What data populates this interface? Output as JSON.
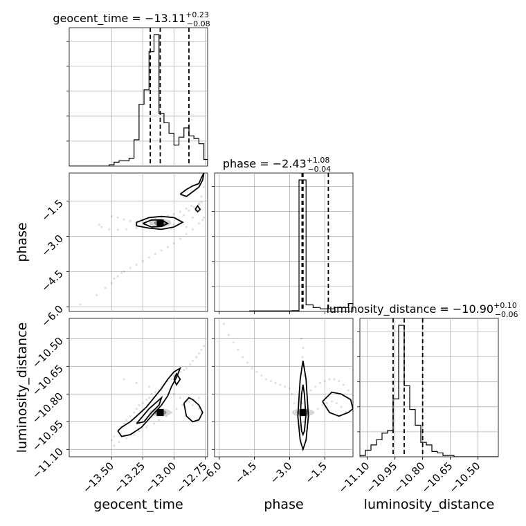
{
  "chart_data": {
    "type": "corner",
    "parameters": [
      "geocent_time",
      "phase",
      "luminosity_distance"
    ],
    "axis_labels": {
      "geocent_time": "geocent_time",
      "phase": "phase",
      "luminosity_distance": "luminosity_distance"
    },
    "ranges": {
      "geocent_time": [
        -13.84,
        -12.73
      ],
      "phase": [
        -6.2,
        -0.3
      ],
      "luminosity_distance": [
        -11.14,
        -10.39
      ]
    },
    "ticks": {
      "geocent_time": [
        -13.5,
        -13.25,
        -13.0,
        -12.75
      ],
      "phase": [
        -6.0,
        -4.5,
        -3.0,
        -1.5
      ],
      "luminosity_distance": [
        -11.1,
        -10.95,
        -10.8,
        -10.65,
        -10.5
      ]
    },
    "tick_labels": {
      "geocent_time": [
        "−13.50",
        "−13.25",
        "−13.00",
        "−12.75"
      ],
      "phase": [
        "−6.0",
        "−4.5",
        "−3.0",
        "−1.5"
      ],
      "luminosity_distance": [
        "−11.10",
        "−10.95",
        "−10.80",
        "−10.65",
        "−10.50"
      ]
    },
    "titles": {
      "geocent_time": {
        "base": "geocent_time = −13.11",
        "sup": "+0.23",
        "sub": "−0.08"
      },
      "phase": {
        "base": "phase = −2.43",
        "sup": "+1.08",
        "sub": "−0.04"
      },
      "luminosity_distance": {
        "base": "luminosity_distance = −10.90",
        "sup": "+0.10",
        "sub": "−0.06"
      }
    },
    "quantiles": {
      "geocent_time": [
        -13.19,
        -13.11,
        -12.88
      ],
      "phase": [
        -2.47,
        -2.43,
        -1.35
      ],
      "luminosity_distance": [
        -10.96,
        -10.9,
        -10.8
      ]
    },
    "histograms": {
      "geocent_time": {
        "edges": [
          -13.84,
          -13.8,
          -13.76,
          -13.72,
          -13.68,
          -13.64,
          -13.6,
          -13.56,
          -13.52,
          -13.48,
          -13.44,
          -13.4,
          -13.36,
          -13.32,
          -13.28,
          -13.24,
          -13.2,
          -13.16,
          -13.12,
          -13.08,
          -13.04,
          -13.0,
          -12.96,
          -12.92,
          -12.88,
          -12.84,
          -12.8,
          -12.76,
          -12.73
        ],
        "counts": [
          0,
          0,
          0,
          0,
          0,
          0,
          0,
          0,
          1,
          3,
          4,
          4,
          6,
          20,
          47,
          58,
          87,
          100,
          40,
          33,
          25,
          16,
          22,
          29,
          23,
          21,
          17,
          5
        ]
      },
      "phase": {
        "edges": [
          -6.2,
          -5.9,
          -5.6,
          -5.3,
          -5.0,
          -4.7,
          -4.4,
          -4.1,
          -3.8,
          -3.5,
          -3.2,
          -2.9,
          -2.6,
          -2.3,
          -2.0,
          -1.7,
          -1.4,
          -1.1,
          -0.8,
          -0.5,
          -0.3
        ],
        "counts": [
          0,
          0,
          0,
          0,
          0,
          0.4,
          0.4,
          0.4,
          0.4,
          0.4,
          0.4,
          0.6,
          100,
          5,
          3,
          2,
          2,
          3,
          3,
          6
        ]
      },
      "luminosity_distance": {
        "edges": [
          -11.14,
          -11.11,
          -11.08,
          -11.05,
          -11.02,
          -10.99,
          -10.96,
          -10.93,
          -10.9,
          -10.87,
          -10.84,
          -10.81,
          -10.78,
          -10.75,
          -10.72,
          -10.69,
          -10.66,
          -10.63,
          -10.6,
          -10.57,
          -10.54,
          -10.51,
          -10.48,
          -10.45,
          -10.42,
          -10.39
        ],
        "counts": [
          1,
          5,
          9,
          13,
          18,
          20,
          44,
          100,
          54,
          36,
          24,
          11,
          9,
          4,
          3,
          1,
          1,
          0,
          0,
          0,
          0,
          0,
          0,
          0,
          0
        ]
      }
    },
    "scatter": {
      "phase_vs_geocent_time": {
        "x": [
          -13.75,
          -13.62,
          -13.55,
          -13.5,
          -13.48,
          -13.45,
          -13.42,
          -13.4,
          -13.35,
          -13.3,
          -13.25,
          -13.2,
          -13.15,
          -13.1,
          -13.05,
          -13.0,
          -12.95,
          -12.9,
          -12.85,
          -12.8,
          -12.77,
          -12.76,
          -13.5,
          -13.45,
          -13.4,
          -13.35,
          -13.3,
          -13.28,
          -13.22,
          -13.18,
          -13.12,
          -13.08,
          -13.04,
          -12.98,
          -12.92,
          -12.88,
          -12.84,
          -12.8,
          -12.78,
          -13.6,
          -13.58,
          -13.52,
          -13.45,
          -13.38,
          -13.3,
          -13.2,
          -13.1,
          -13.0,
          -12.9,
          -12.85,
          -12.82,
          -12.8,
          -12.78,
          -12.76,
          -13.25,
          -13.2,
          -13.15,
          -13.1,
          -13.05,
          -13.0,
          -12.95,
          -12.9,
          -12.86
        ],
        "y": [
          -5.9,
          -5.5,
          -5.2,
          -5.0,
          -4.8,
          -4.7,
          -4.55,
          -4.5,
          -4.35,
          -4.2,
          -4.05,
          -3.9,
          -3.75,
          -3.6,
          -3.45,
          -3.3,
          -3.1,
          -2.9,
          -2.7,
          -2.45,
          -2.3,
          -2.2,
          -2.15,
          -2.2,
          -2.28,
          -2.34,
          -2.38,
          -2.4,
          -2.42,
          -2.44,
          -2.45,
          -2.4,
          -2.35,
          -2.25,
          -2.1,
          -1.9,
          -1.75,
          -1.65,
          -1.55,
          -2.5,
          -2.6,
          -2.7,
          -2.72,
          -2.7,
          -2.65,
          -2.6,
          -2.55,
          -2.5,
          -2.6,
          -2.2,
          -1.85,
          -1.6,
          -1.3,
          -0.9,
          -2.35,
          -2.3,
          -2.25,
          -2.18,
          -2.12,
          -2.05,
          -1.95,
          -1.82,
          -1.7
        ]
      },
      "luminosity_distance_vs_geocent_time": {
        "x": [
          -13.5,
          -13.48,
          -13.45,
          -13.42,
          -13.4,
          -13.38,
          -13.35,
          -13.32,
          -13.3,
          -13.28,
          -13.25,
          -13.22,
          -13.2,
          -13.18,
          -13.15,
          -13.12,
          -13.1,
          -13.08,
          -13.05,
          -13.02,
          -13.0,
          -12.97,
          -12.95,
          -12.92,
          -12.9,
          -12.87,
          -12.85,
          -12.82,
          -12.8,
          -12.78,
          -12.76,
          -13.4,
          -13.3,
          -13.2,
          -13.1,
          -13.0,
          -12.95,
          -12.9,
          -12.85,
          -12.8,
          -12.78,
          -13.48,
          -13.44,
          -13.38,
          -13.32,
          -13.28,
          -13.22,
          -13.16,
          -13.12,
          -13.06,
          -13.02,
          -12.98,
          -12.93,
          -12.88,
          -12.84,
          -12.8
        ],
        "y": [
          -11.05,
          -11.03,
          -11.0,
          -10.98,
          -10.96,
          -10.94,
          -10.92,
          -10.9,
          -10.88,
          -10.86,
          -10.85,
          -10.83,
          -10.82,
          -10.8,
          -10.79,
          -10.78,
          -10.76,
          -10.75,
          -10.73,
          -10.72,
          -10.7,
          -10.69,
          -10.68,
          -10.67,
          -10.66,
          -10.64,
          -10.62,
          -10.6,
          -10.58,
          -10.56,
          -10.54,
          -10.72,
          -10.74,
          -10.76,
          -10.78,
          -10.8,
          -10.82,
          -10.84,
          -10.86,
          -10.88,
          -10.9,
          -11.08,
          -11.06,
          -11.04,
          -11.02,
          -11.0,
          -10.98,
          -10.96,
          -10.94,
          -10.92,
          -10.9,
          -10.88,
          -10.86,
          -10.84,
          -10.83,
          -10.82
        ]
      },
      "luminosity_distance_vs_phase": {
        "x": [
          -5.8,
          -5.6,
          -5.4,
          -5.2,
          -5.0,
          -4.8,
          -4.6,
          -4.4,
          -4.2,
          -4.0,
          -3.8,
          -3.6,
          -3.4,
          -3.2,
          -3.0,
          -2.9,
          -2.8,
          -2.5,
          -2.45,
          -2.4,
          -2.35,
          -2.3,
          -2.5,
          -2.4,
          -2.45,
          -2.4,
          -2.48,
          -2.42,
          -2.1,
          -1.9,
          -1.7,
          -1.5,
          -1.3,
          -1.1,
          -0.9,
          -0.7,
          -0.5,
          -2.2,
          -2.0,
          -1.8,
          -1.6,
          -1.4,
          -1.2,
          -1.0,
          -0.8,
          -0.6
        ],
        "y": [
          -10.42,
          -10.48,
          -10.52,
          -10.56,
          -10.6,
          -10.63,
          -10.66,
          -10.68,
          -10.7,
          -10.72,
          -10.73,
          -10.74,
          -10.75,
          -10.76,
          -10.77,
          -10.8,
          -10.85,
          -10.5,
          -10.6,
          -10.7,
          -10.9,
          -11.0,
          -11.05,
          -10.95,
          -10.85,
          -10.75,
          -10.65,
          -10.55,
          -10.78,
          -10.76,
          -10.74,
          -10.73,
          -10.72,
          -10.72,
          -10.73,
          -10.75,
          -10.78,
          -10.92,
          -10.9,
          -10.88,
          -10.86,
          -10.85,
          -10.84,
          -10.85,
          -10.87,
          -10.9
        ]
      }
    },
    "contours": {
      "phase_vs_geocent_time": [
        {
          "x": [
            -13.3,
            -13.2,
            -13.1,
            -13.0,
            -12.93,
            -13.0,
            -13.1,
            -13.2,
            -13.3,
            -13.3
          ],
          "y": [
            -2.4,
            -2.2,
            -2.15,
            -2.2,
            -2.4,
            -2.6,
            -2.7,
            -2.65,
            -2.55,
            -2.4
          ]
        },
        {
          "x": [
            -13.25,
            -13.18,
            -13.1,
            -13.05,
            -13.1,
            -13.18,
            -13.25
          ],
          "y": [
            -2.45,
            -2.3,
            -2.3,
            -2.45,
            -2.58,
            -2.6,
            -2.45
          ]
        },
        {
          "x": [
            -12.95,
            -12.9,
            -12.85,
            -12.8,
            -12.78,
            -12.76,
            -12.77,
            -12.8,
            -12.85,
            -12.9,
            -12.95
          ],
          "y": [
            -1.2,
            -1.0,
            -0.85,
            -0.75,
            -0.5,
            -0.3,
            -0.6,
            -0.9,
            -1.1,
            -1.3,
            -1.2
          ]
        },
        {
          "x": [
            -12.83,
            -12.81,
            -12.79,
            -12.81,
            -12.83
          ],
          "y": [
            -1.85,
            -1.7,
            -1.85,
            -1.95,
            -1.85
          ]
        }
      ],
      "luminosity_distance_vs_geocent_time": [
        {
          "x": [
            -13.45,
            -13.42,
            -13.35,
            -13.3,
            -13.22,
            -13.16,
            -13.1,
            -13.05,
            -13.0,
            -12.95,
            -12.98,
            -13.02,
            -13.05,
            -13.1,
            -13.18,
            -13.26,
            -13.35,
            -13.42,
            -13.45
          ],
          "y": [
            -11.0,
            -10.98,
            -10.95,
            -10.92,
            -10.87,
            -10.82,
            -10.77,
            -10.72,
            -10.68,
            -10.66,
            -10.71,
            -10.76,
            -10.81,
            -10.86,
            -10.92,
            -10.98,
            -11.02,
            -11.03,
            -11.0
          ]
        },
        {
          "x": [
            -13.3,
            -13.25,
            -13.2,
            -13.15,
            -13.1,
            -13.12,
            -13.18,
            -13.24,
            -13.3
          ],
          "y": [
            -10.96,
            -10.92,
            -10.88,
            -10.85,
            -10.82,
            -10.86,
            -10.9,
            -10.95,
            -10.96
          ]
        },
        {
          "x": [
            -12.92,
            -12.88,
            -12.85,
            -12.8,
            -12.77,
            -12.8,
            -12.85,
            -12.9,
            -12.92
          ],
          "y": [
            -10.85,
            -10.82,
            -10.83,
            -10.86,
            -10.9,
            -10.94,
            -10.95,
            -10.92,
            -10.85
          ]
        },
        {
          "x": [
            -13.0,
            -12.98,
            -12.95,
            -12.98,
            -13.0
          ],
          "y": [
            -10.72,
            -10.69,
            -10.72,
            -10.75,
            -10.72
          ]
        }
      ],
      "luminosity_distance_vs_phase": [
        {
          "x": [
            -2.65,
            -2.55,
            -2.43,
            -2.3,
            -2.2,
            -2.3,
            -2.43,
            -2.55,
            -2.65
          ],
          "y": [
            -10.92,
            -10.72,
            -10.62,
            -10.72,
            -10.92,
            -11.05,
            -11.1,
            -11.05,
            -10.92
          ]
        },
        {
          "x": [
            -2.55,
            -2.49,
            -2.43,
            -2.37,
            -2.31,
            -2.37,
            -2.43,
            -2.49,
            -2.55
          ],
          "y": [
            -10.92,
            -10.8,
            -10.75,
            -10.8,
            -10.92,
            -11.0,
            -11.02,
            -11.0,
            -10.92
          ]
        },
        {
          "x": [
            -1.6,
            -1.2,
            -0.8,
            -0.4,
            -0.3,
            -0.5,
            -0.9,
            -1.3,
            -1.6
          ],
          "y": [
            -10.84,
            -10.79,
            -10.8,
            -10.83,
            -10.88,
            -10.9,
            -10.92,
            -10.9,
            -10.84
          ]
        }
      ]
    },
    "peaks": {
      "phase_vs_geocent_time": {
        "x": -13.11,
        "y": -2.43
      },
      "luminosity_distance_vs_geocent_time": {
        "x": -13.11,
        "y": -10.9
      },
      "luminosity_distance_vs_phase": {
        "x": -2.43,
        "y": -10.9
      }
    },
    "grid": true,
    "legend": "none"
  }
}
